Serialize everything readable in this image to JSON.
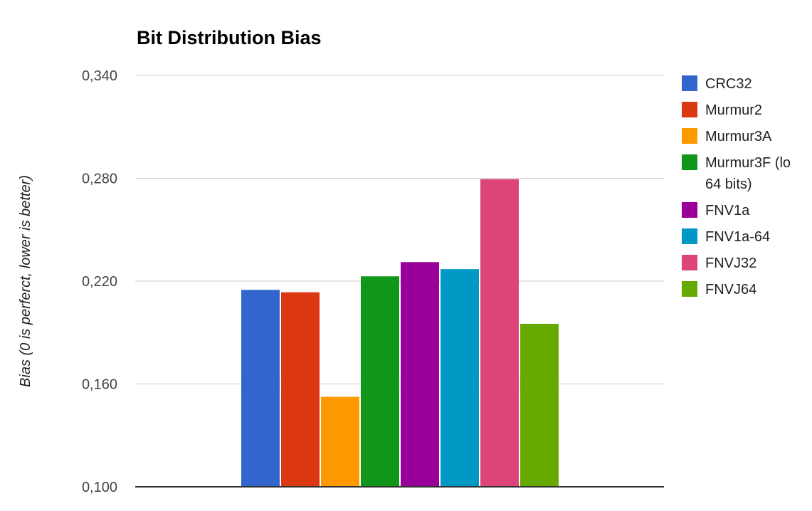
{
  "chart_data": {
    "type": "bar",
    "title": "Bit Distribution Bias",
    "xlabel": "",
    "ylabel": "Bias (0 is perferct, lower is better)",
    "ylim": [
      0.1,
      0.34
    ],
    "yticks": [
      "0,100",
      "0,160",
      "0,220",
      "0,280",
      "0,340"
    ],
    "ytick_values": [
      0.1,
      0.16,
      0.22,
      0.28,
      0.34
    ],
    "grid": true,
    "legend_position": "right",
    "series": [
      {
        "name": "CRC32",
        "values": [
          0.2149
        ],
        "color": "#3366cc"
      },
      {
        "name": "Murmur2",
        "values": [
          0.2135
        ],
        "color": "#dc3912"
      },
      {
        "name": "Murmur3A",
        "values": [
          0.1525
        ],
        "color": "#ff9900"
      },
      {
        "name": "Murmur3F (lo 64 bits)",
        "values": [
          0.2228
        ],
        "color": "#109618"
      },
      {
        "name": "FNV1a",
        "values": [
          0.2311
        ],
        "color": "#990099"
      },
      {
        "name": "FNV1a-64",
        "values": [
          0.227
        ],
        "color": "#0099c6"
      },
      {
        "name": "FNVJ32",
        "values": [
          0.2795
        ],
        "color": "#dd4477"
      },
      {
        "name": "FNVJ64",
        "values": [
          0.1951
        ],
        "color": "#66aa00"
      }
    ],
    "legend_lines": [
      [
        "CRC32"
      ],
      [
        "Murmur2"
      ],
      [
        "Murmur3A"
      ],
      [
        "Murmur3F (lo",
        "64 bits)"
      ],
      [
        "FNV1a"
      ],
      [
        "FNV1a-64"
      ],
      [
        "FNVJ32"
      ],
      [
        "FNVJ64"
      ]
    ]
  }
}
